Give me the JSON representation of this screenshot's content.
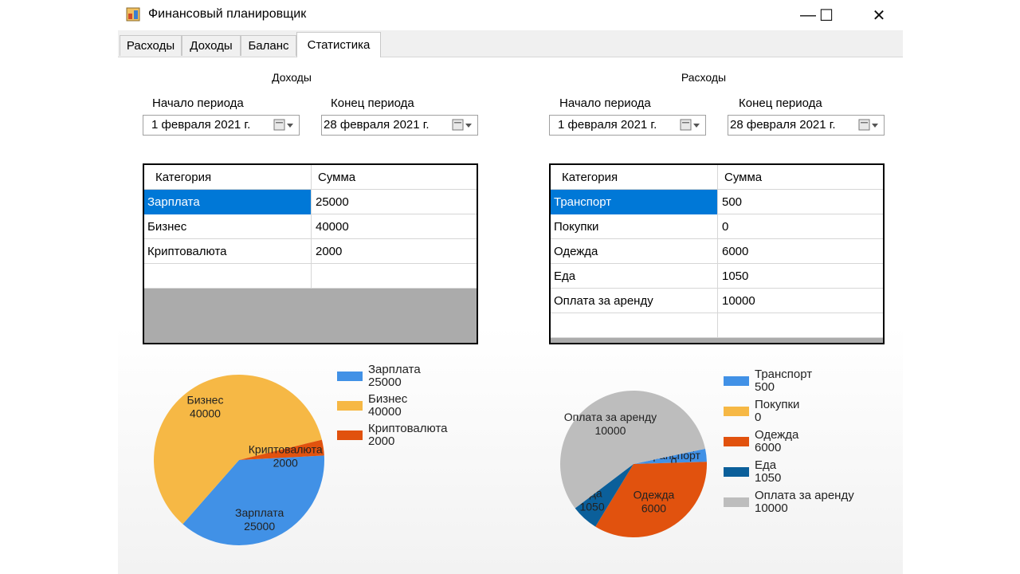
{
  "window": {
    "title": "Финансовый планировщик"
  },
  "window_controls": {
    "minimize": "—",
    "maximize": "☐",
    "close": "✕"
  },
  "tabs": [
    {
      "label": "Расходы"
    },
    {
      "label": "Доходы"
    },
    {
      "label": "Баланс"
    },
    {
      "label": "Статистика"
    }
  ],
  "income": {
    "title": "Доходы",
    "start_label": "Начало периода",
    "end_label": "Конец периода",
    "start_date": "1 февраля  2021 г.",
    "end_date": "28 февраля  2021 г.",
    "columns": [
      "Категория",
      "Сумма"
    ],
    "rows": [
      {
        "category": "Зарплата",
        "amount": "25000"
      },
      {
        "category": "Бизнес",
        "amount": "40000"
      },
      {
        "category": "Криптовалюта",
        "amount": "2000"
      }
    ]
  },
  "expenses": {
    "title": "Расходы",
    "start_label": "Начало периода",
    "end_label": "Конец периода",
    "start_date": "1 февраля  2021 г.",
    "end_date": "28 февраля  2021 г.",
    "columns": [
      "Категория",
      "Сумма"
    ],
    "rows": [
      {
        "category": "Транспорт",
        "amount": "500"
      },
      {
        "category": "Покупки",
        "amount": "0"
      },
      {
        "category": "Одежда",
        "amount": "6000"
      },
      {
        "category": "Еда",
        "amount": "1050"
      },
      {
        "category": "Оплата за аренду",
        "amount": "10000"
      }
    ]
  },
  "chart_data": [
    {
      "type": "pie",
      "categories": [
        "Зарплата",
        "Бизнес",
        "Криптовалюта"
      ],
      "values": [
        25000,
        40000,
        2000
      ],
      "colors": [
        "#4191e6",
        "#f6b845",
        "#e1520e"
      ],
      "legend": "right"
    },
    {
      "type": "pie",
      "categories": [
        "Транспорт",
        "Покупки",
        "Одежда",
        "Еда",
        "Оплата за аренду"
      ],
      "values": [
        500,
        0,
        6000,
        1050,
        10000
      ],
      "colors": [
        "#4191e6",
        "#f6b845",
        "#e1520e",
        "#0b5f9a",
        "#bdbdbd"
      ],
      "legend": "right"
    }
  ]
}
